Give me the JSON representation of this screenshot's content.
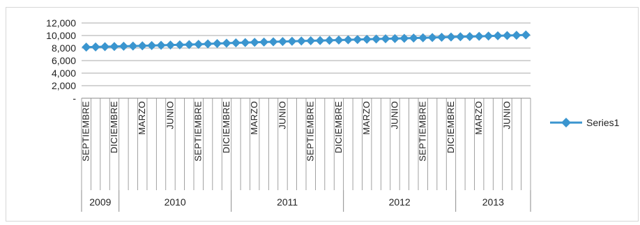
{
  "chart_data": {
    "type": "line",
    "title": "",
    "xlabel": "",
    "ylabel": "",
    "ylim": [
      0,
      12000
    ],
    "yticks": [
      0,
      2000,
      4000,
      6000,
      8000,
      10000,
      12000
    ],
    "ytick_labels": [
      "-",
      "2,000",
      "4,000",
      "6,000",
      "8,000",
      "10,000",
      "12,000"
    ],
    "grid": true,
    "legend_position": "right",
    "marker": "diamond",
    "color": "#3a95cf",
    "years": [
      {
        "label": "2009",
        "count": 4
      },
      {
        "label": "2010",
        "count": 12
      },
      {
        "label": "2011",
        "count": 12
      },
      {
        "label": "2012",
        "count": 12
      },
      {
        "label": "2013",
        "count": 8
      }
    ],
    "month_labels": [
      {
        "index": 0,
        "text": "SEPTIEMBRE"
      },
      {
        "index": 3,
        "text": "DICIEMBRE"
      },
      {
        "index": 6,
        "text": "MARZO"
      },
      {
        "index": 9,
        "text": "JUNIO"
      },
      {
        "index": 12,
        "text": "SEPTIEMBRE"
      },
      {
        "index": 15,
        "text": "DICIEMBRE"
      },
      {
        "index": 18,
        "text": "MARZO"
      },
      {
        "index": 21,
        "text": "JUNIO"
      },
      {
        "index": 24,
        "text": "SEPTIEMBRE"
      },
      {
        "index": 27,
        "text": "DICIEMBRE"
      },
      {
        "index": 30,
        "text": "MARZO"
      },
      {
        "index": 33,
        "text": "JUNIO"
      },
      {
        "index": 36,
        "text": "SEPTIEMBRE"
      },
      {
        "index": 39,
        "text": "DICIEMBRE"
      },
      {
        "index": 42,
        "text": "MARZO"
      },
      {
        "index": 45,
        "text": "JUNIO"
      }
    ],
    "series": [
      {
        "name": "Series1",
        "values": [
          8150,
          8180,
          8220,
          8250,
          8290,
          8320,
          8360,
          8400,
          8440,
          8480,
          8520,
          8560,
          8600,
          8660,
          8720,
          8780,
          8840,
          8880,
          8920,
          8960,
          9000,
          9040,
          9080,
          9120,
          9160,
          9200,
          9240,
          9280,
          9320,
          9360,
          9400,
          9440,
          9480,
          9520,
          9560,
          9600,
          9640,
          9680,
          9720,
          9760,
          9800,
          9840,
          9880,
          9920,
          9960,
          10000,
          10040,
          10100
        ]
      }
    ]
  }
}
